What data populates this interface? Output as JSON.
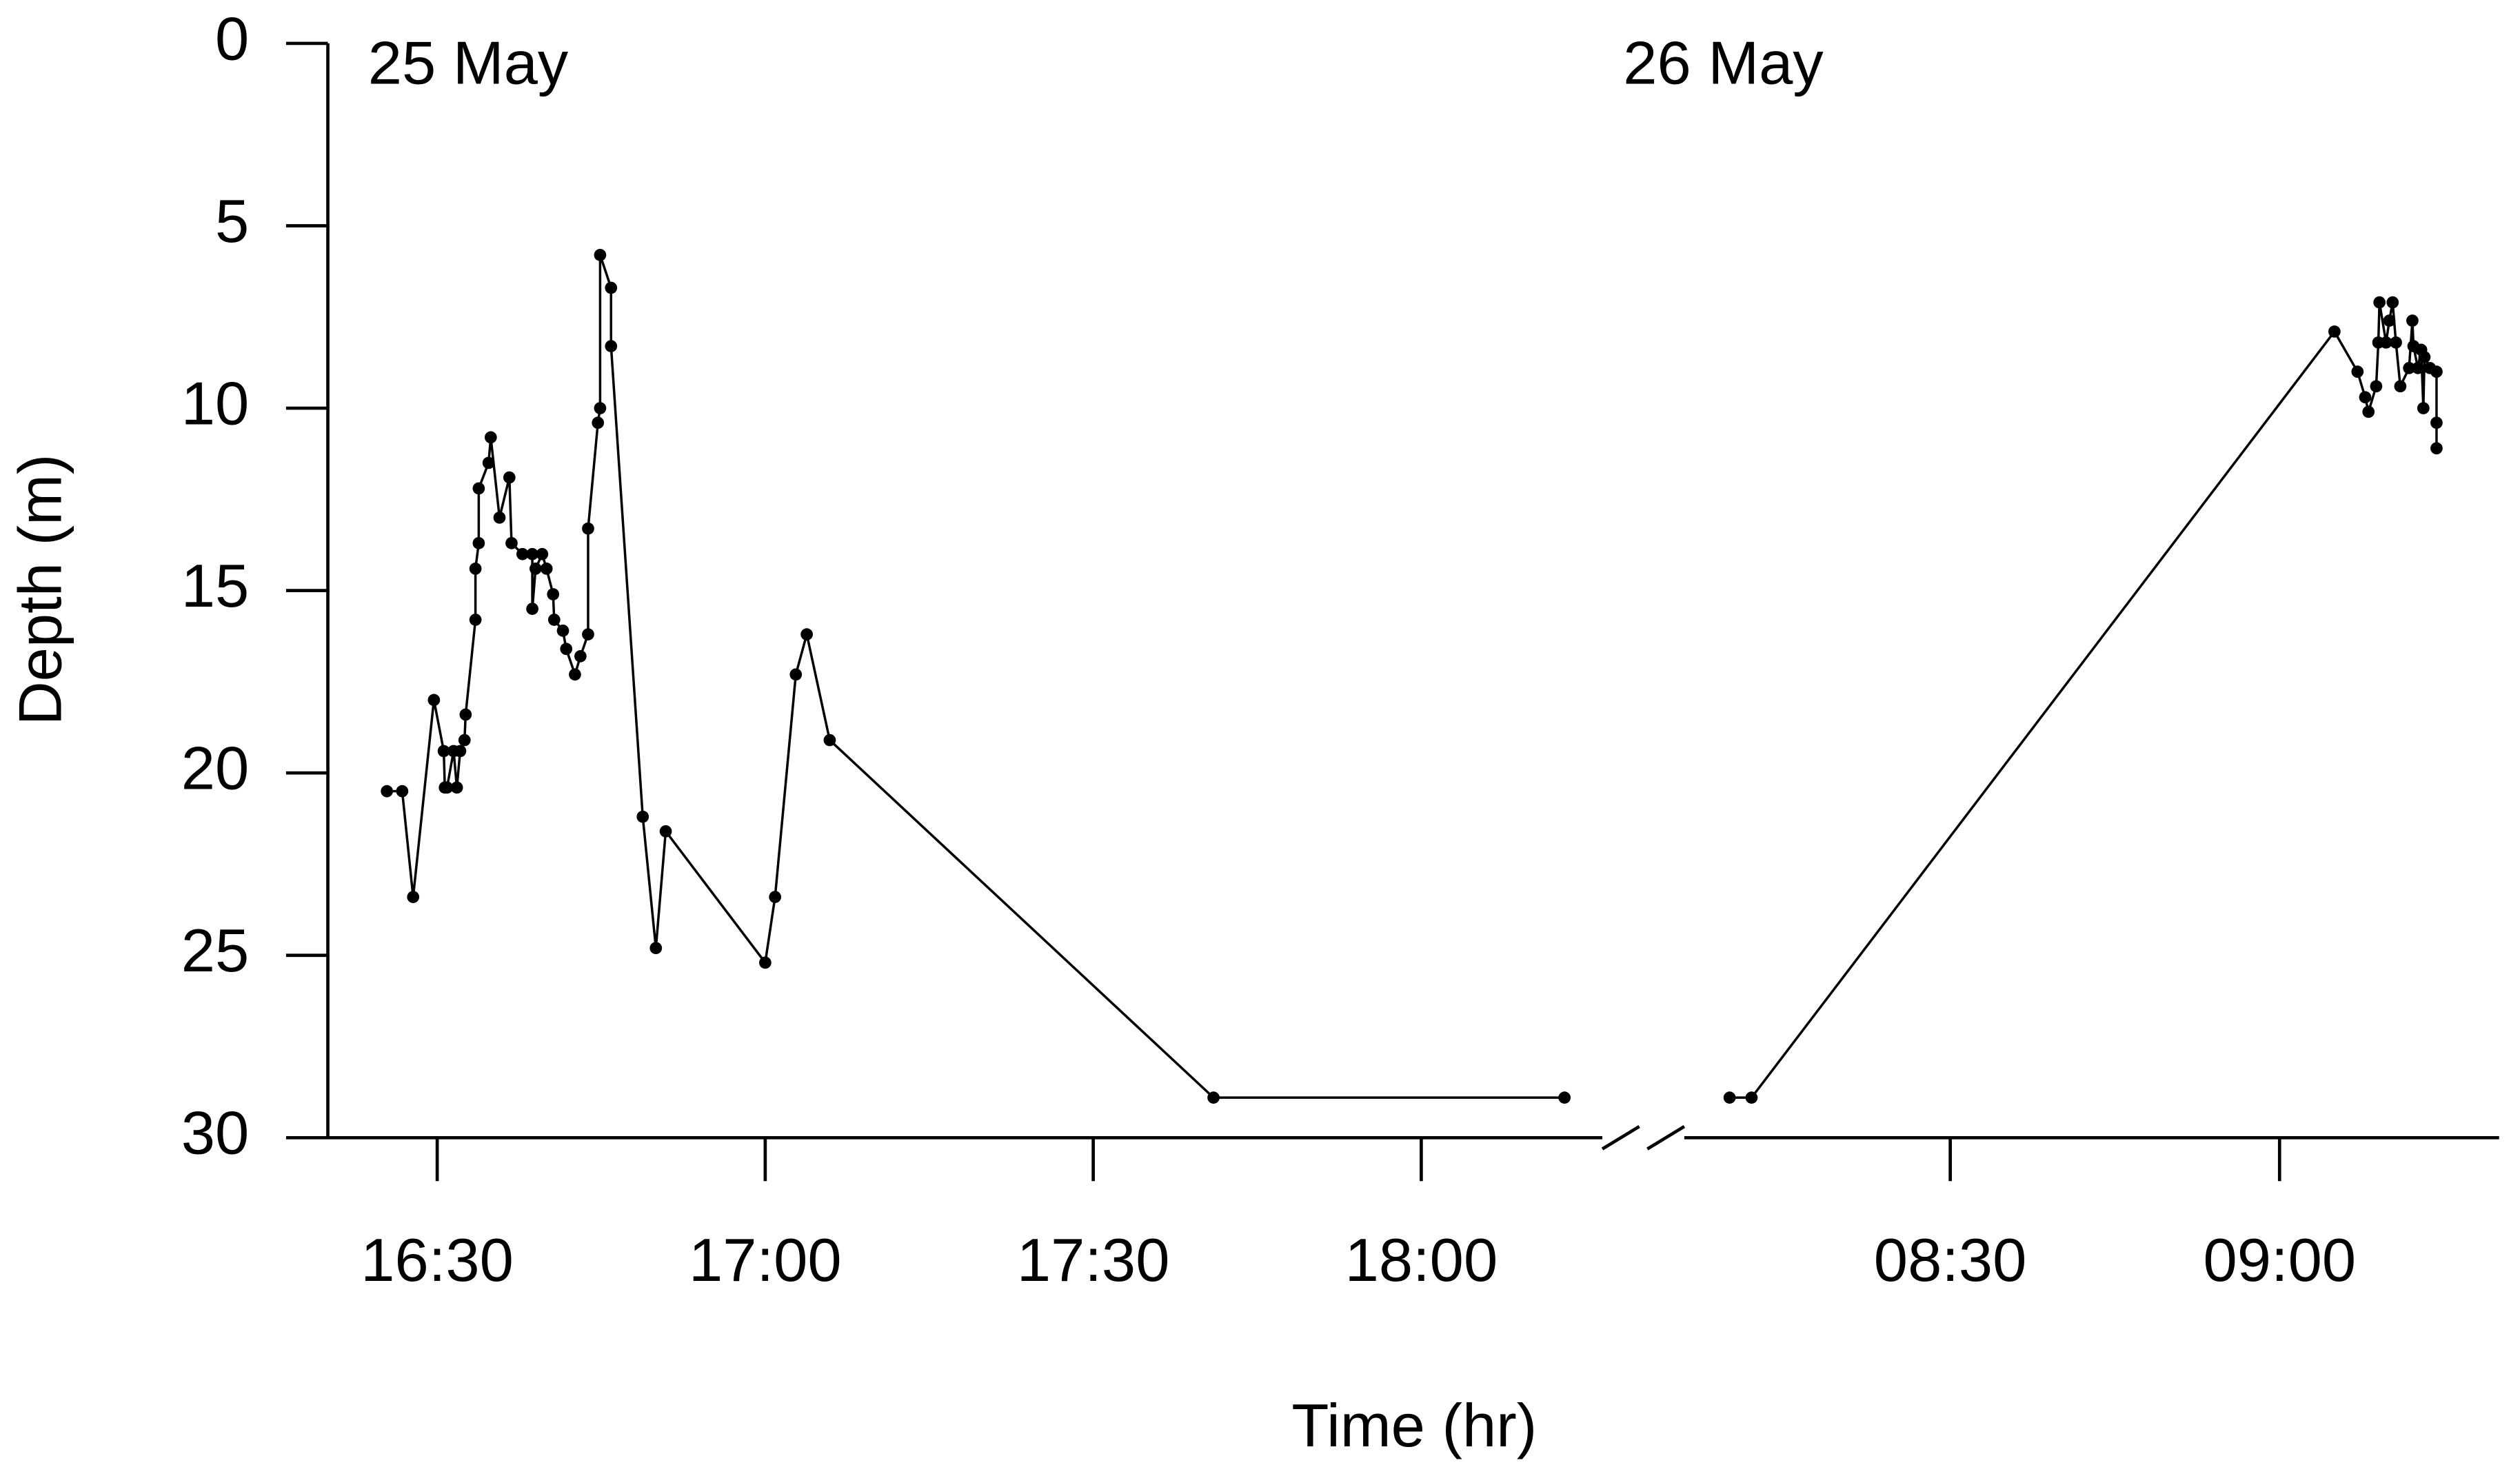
{
  "chart_data": [
    {
      "type": "line",
      "annotation": "25 May",
      "ylabel": "Depth (m)",
      "xlabel": "Time (hr)",
      "xlim": [
        980,
        1097
      ],
      "ylim": [
        30,
        0
      ],
      "yticks": [
        0,
        5,
        10,
        15,
        20,
        25,
        30
      ],
      "xticks": [
        {
          "value": 990,
          "label": "16:30"
        },
        {
          "value": 1020,
          "label": "17:00"
        },
        {
          "value": 1050,
          "label": "17:30"
        },
        {
          "value": 1080,
          "label": "18:00"
        }
      ],
      "series": [
        {
          "color": "#000000",
          "x": [
            985.4,
            986.8,
            987.8,
            989.7,
            990.6,
            990.7,
            990.9,
            991.5,
            991.8,
            992.1,
            992.5,
            992.6,
            993.5,
            993.5,
            993.8,
            993.8,
            994.7,
            994.9,
            995.7,
            996.6,
            996.8,
            997.8,
            998.7,
            998.7,
            999.0,
            999.6,
            1000.0,
            1000.6,
            1000.7,
            1001.5,
            1001.8,
            1002.6,
            1003.1,
            1003.8,
            1003.8,
            1004.7,
            1004.9,
            1004.9,
            1005.9,
            1005.9,
            1008.8,
            1010.0,
            1010.9,
            1020.0,
            1020.9,
            1022.8,
            1023.8,
            1025.9,
            1061.0,
            1093.1
          ],
          "values": [
            20.5,
            20.5,
            23.4,
            18.0,
            19.4,
            20.4,
            20.4,
            19.4,
            20.4,
            19.4,
            19.1,
            18.4,
            15.8,
            14.4,
            13.7,
            12.2,
            11.5,
            10.8,
            13.0,
            11.9,
            13.7,
            14.0,
            14.0,
            15.5,
            14.4,
            14.0,
            14.4,
            15.1,
            15.8,
            16.1,
            16.6,
            17.3,
            16.8,
            16.2,
            13.3,
            10.4,
            10.0,
            5.8,
            6.7,
            8.3,
            21.2,
            24.8,
            21.6,
            25.2,
            23.4,
            17.3,
            16.2,
            19.1,
            28.9,
            28.9
          ]
        }
      ]
    },
    {
      "type": "line",
      "annotation": "26 May",
      "xlim": [
        484.6,
        560
      ],
      "ylim": [
        30,
        0
      ],
      "xticks": [
        {
          "value": 510,
          "label": "08:30"
        },
        {
          "value": 540,
          "label": "09:00"
        }
      ],
      "series": [
        {
          "color": "#000000",
          "x": [
            489.9,
            491.9,
            545.0,
            547.1,
            547.8,
            548.1,
            548.8,
            549.0,
            549.1,
            549.7,
            550.0,
            550.3,
            550.6,
            551.0,
            551.8,
            552.1,
            552.2,
            552.6,
            552.9,
            553.1,
            553.2,
            553.7,
            554.3,
            554.3,
            554.3
          ],
          "values": [
            28.9,
            28.9,
            7.9,
            9.0,
            9.7,
            10.1,
            9.4,
            8.2,
            7.1,
            8.2,
            7.6,
            7.1,
            8.2,
            9.4,
            8.9,
            7.6,
            8.3,
            8.9,
            8.4,
            10.0,
            8.6,
            8.9,
            9.0,
            10.4,
            11.1
          ]
        }
      ]
    }
  ]
}
